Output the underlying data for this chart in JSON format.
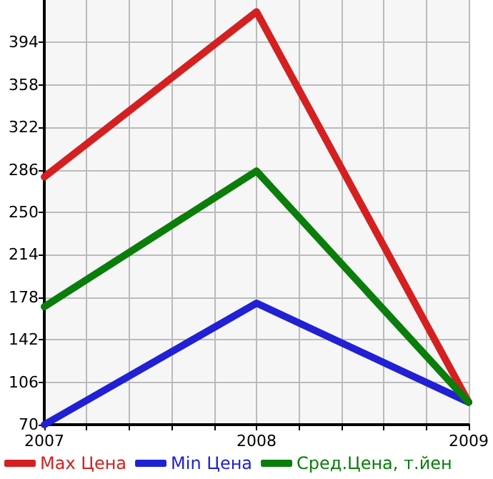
{
  "chart_data": {
    "type": "line",
    "x": [
      2007,
      2008,
      2009
    ],
    "series": [
      {
        "name": "Max Цена",
        "color": "#d42020",
        "values": [
          280,
          420,
          89
        ]
      },
      {
        "name": "Min Цена",
        "color": "#2020d4",
        "values": [
          70,
          173,
          89
        ]
      },
      {
        "name": "Сред.Цена, т.йен",
        "color": "#0a7d0a",
        "values": [
          170,
          285,
          89
        ]
      }
    ],
    "xlim": [
      2007,
      2009
    ],
    "xticks": [
      2007,
      {
        "value": 2007.2,
        "label": null
      },
      {
        "value": 2007.4,
        "label": null
      },
      {
        "value": 2007.6,
        "label": null
      },
      {
        "value": 2007.8,
        "label": null
      },
      2008,
      {
        "value": 2008.2,
        "label": null
      },
      {
        "value": 2008.4,
        "label": null
      },
      {
        "value": 2008.6,
        "label": null
      },
      {
        "value": 2008.8,
        "label": null
      },
      2009
    ],
    "ylim": [
      70,
      430
    ],
    "yticks": [
      70,
      106,
      142,
      178,
      214,
      250,
      286,
      322,
      358,
      394
    ],
    "grid": true,
    "legend": "bottom",
    "marker": "none",
    "line_style": "solid"
  }
}
